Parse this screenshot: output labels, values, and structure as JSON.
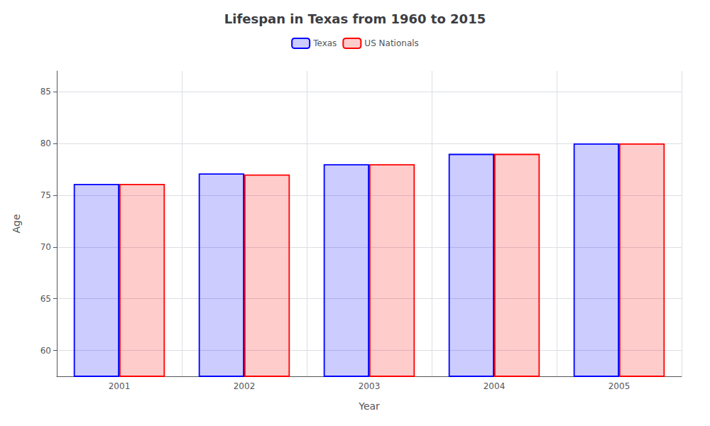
{
  "chart_data": {
    "type": "bar",
    "title": "Lifespan in Texas from 1960 to 2015",
    "xlabel": "Year",
    "ylabel": "Age",
    "categories": [
      "2001",
      "2002",
      "2003",
      "2004",
      "2005"
    ],
    "series": [
      {
        "name": "Texas",
        "color": "#0000ff",
        "values": [
          76.1,
          77.1,
          78.0,
          79.0,
          80.0
        ]
      },
      {
        "name": "US Nationals",
        "color": "#ff0000",
        "values": [
          76.1,
          77.0,
          78.0,
          79.0,
          80.0
        ]
      }
    ],
    "ylim": [
      57.5,
      87
    ],
    "yticks": [
      60,
      65,
      70,
      75,
      80,
      85
    ],
    "grid": true,
    "legend": "top"
  }
}
